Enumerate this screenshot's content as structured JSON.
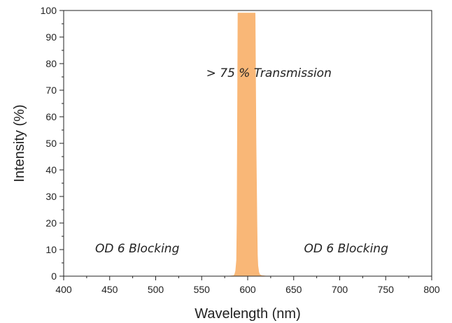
{
  "chart_data": {
    "type": "area",
    "title": "",
    "xlabel": "Wavelength (nm)",
    "ylabel": "Intensity (%)",
    "xlim": [
      400,
      800
    ],
    "ylim": [
      0,
      100
    ],
    "x_ticks": [
      400,
      450,
      500,
      550,
      600,
      650,
      700,
      750,
      800
    ],
    "y_ticks": [
      0,
      10,
      20,
      30,
      40,
      50,
      60,
      70,
      80,
      90,
      100
    ],
    "grid": false,
    "fill_color": "#f9b777",
    "series": [
      {
        "x": [
          400,
          580,
          585,
          586,
          587,
          588,
          588.5,
          589.5,
          608,
          609,
          610,
          610.5,
          611,
          612,
          613,
          615,
          620,
          800
        ],
        "y": [
          0,
          0,
          0.2,
          0.7,
          2,
          6,
          20,
          99,
          99,
          50,
          20,
          8,
          4,
          1.5,
          0.6,
          0.2,
          0,
          0
        ]
      }
    ],
    "annotations": [
      {
        "text": "> 75 % Transmission",
        "x": 623,
        "y": 75
      },
      {
        "text": "OD 6 Blocking",
        "x": 480,
        "y": 9
      },
      {
        "text": "OD 6 Blocking",
        "x": 707,
        "y": 9
      }
    ]
  }
}
